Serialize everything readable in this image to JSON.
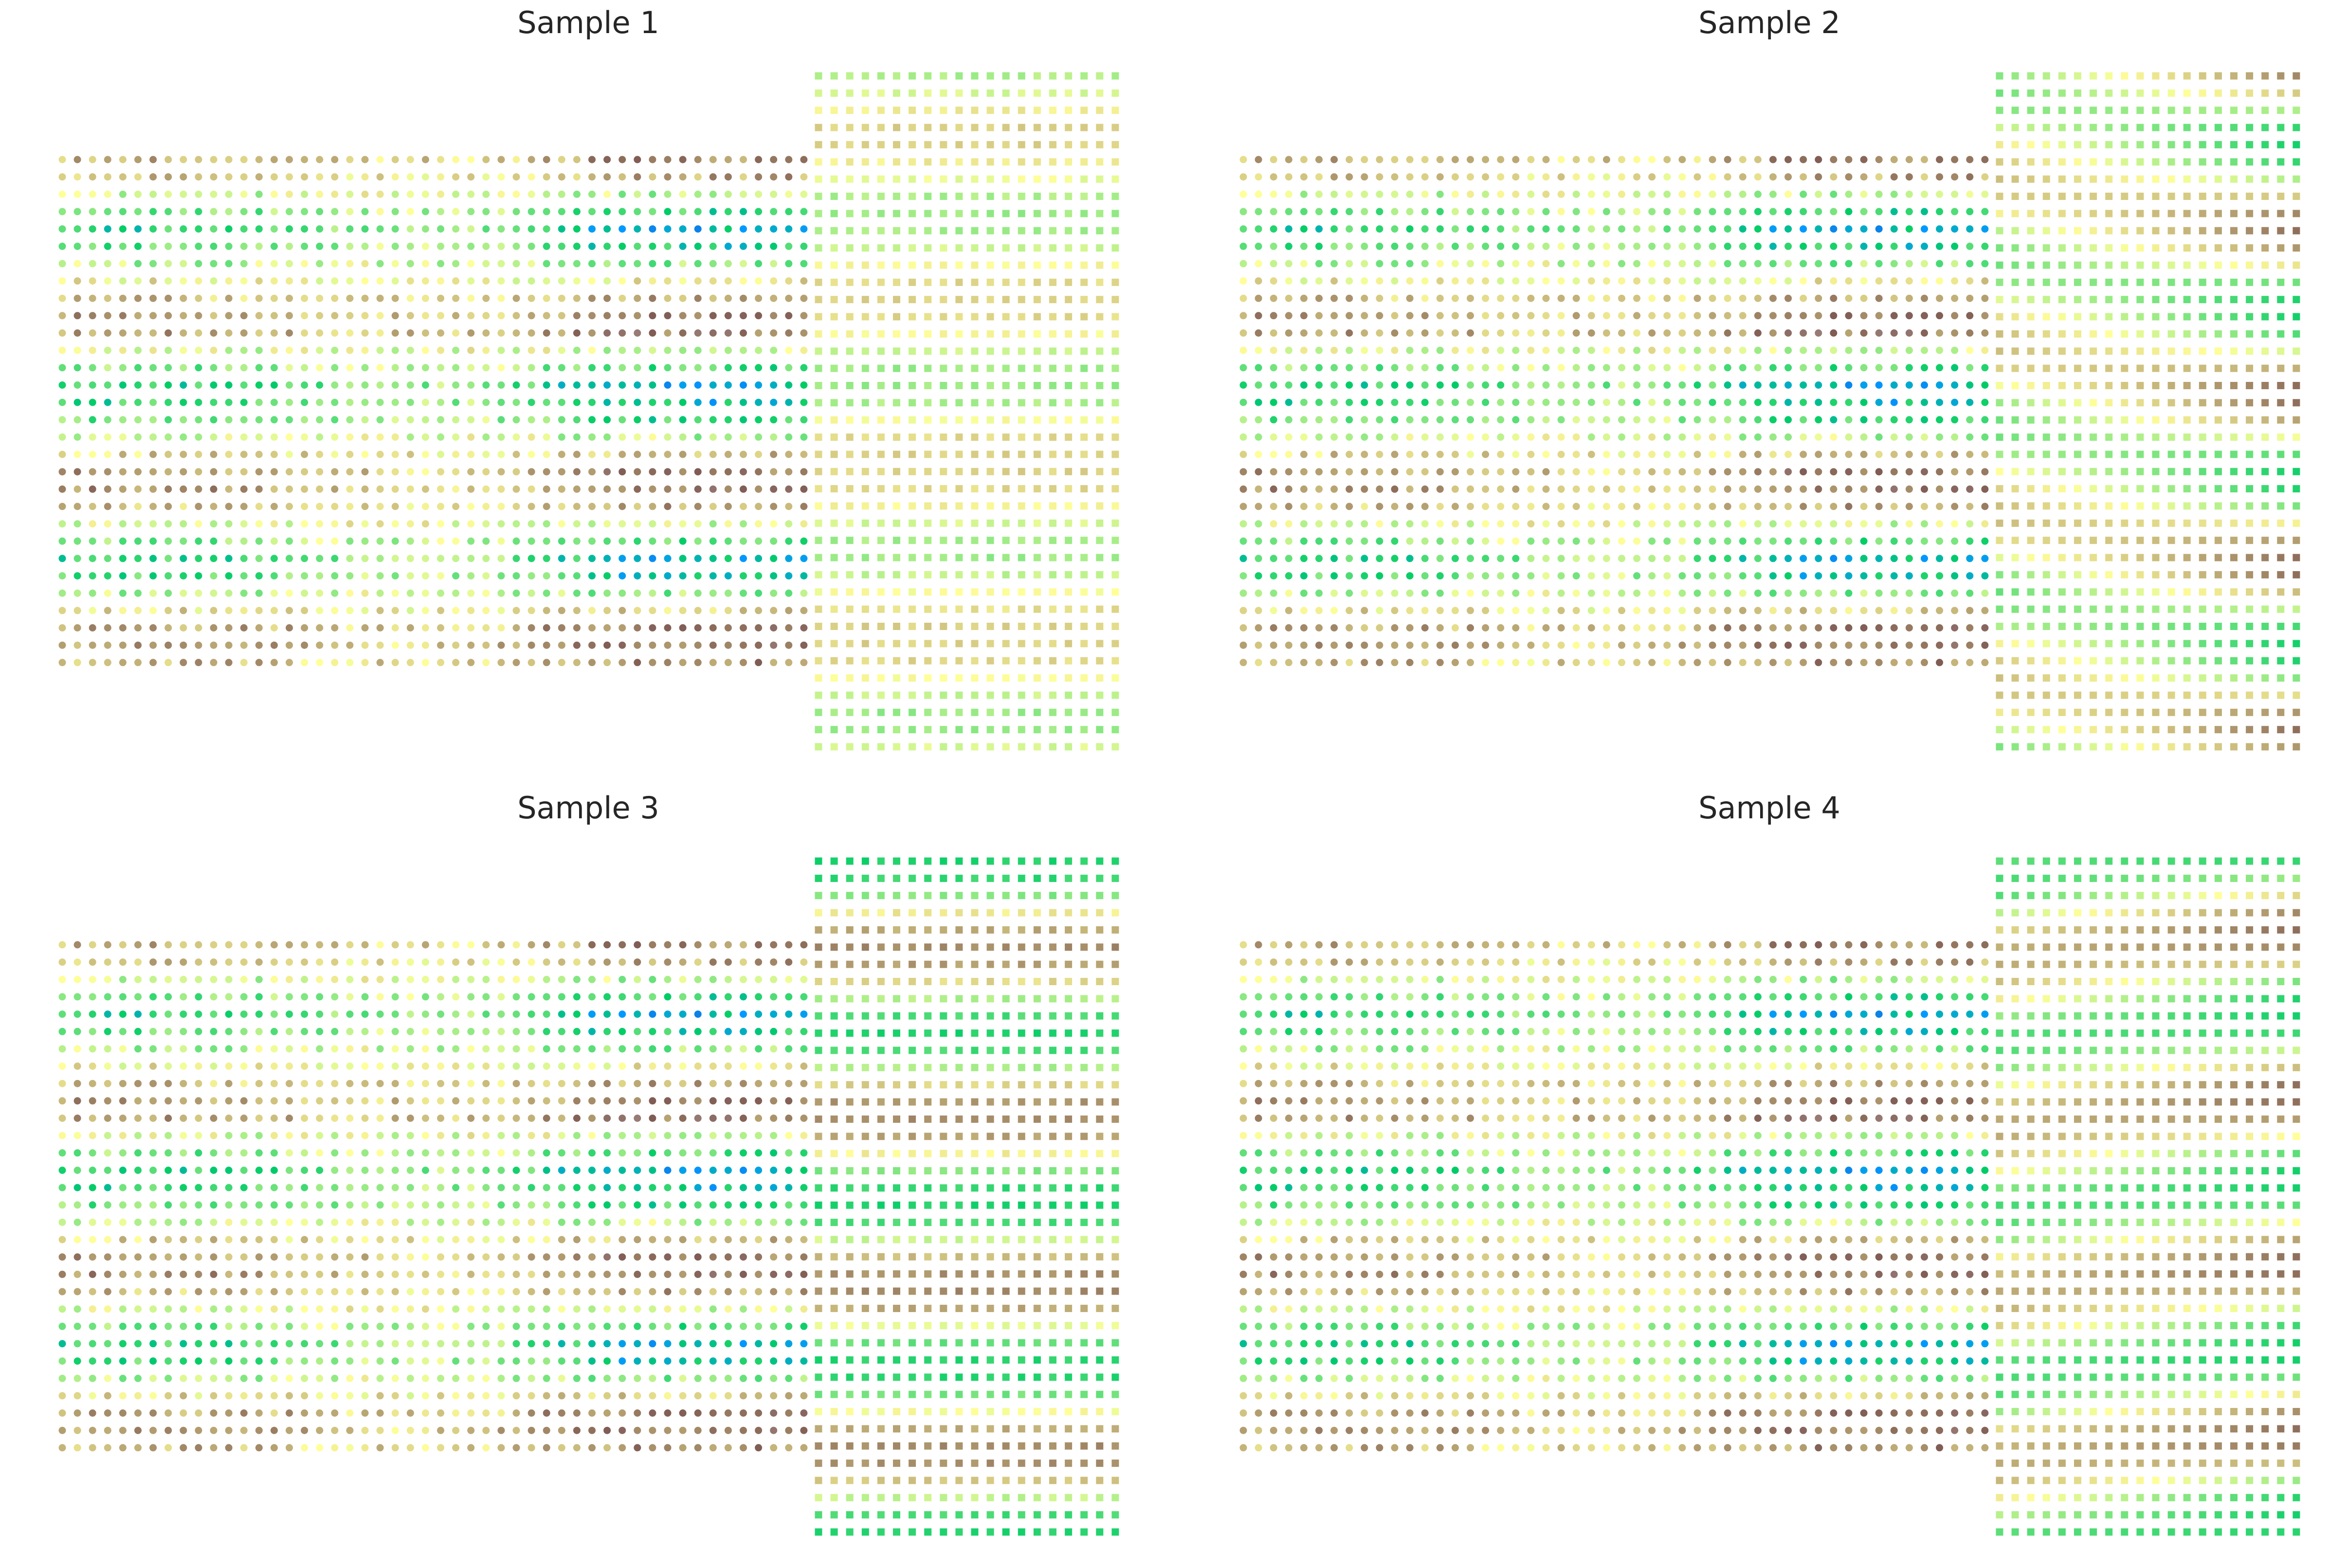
{
  "chart_data": {
    "type": "scatter",
    "colormap": "terrain",
    "value_range": [
      0,
      1
    ],
    "axes_visible": false,
    "grid": false,
    "legend": "none",
    "panels": [
      {
        "title": "Sample 1",
        "right_grid": {
          "rows": [
            0.42,
            0.46,
            0.53,
            0.57,
            0.57,
            0.53,
            0.48,
            0.42,
            0.4,
            0.41,
            0.45,
            0.51,
            0.56,
            0.57,
            0.56,
            0.51,
            0.45,
            0.4,
            0.4,
            0.42,
            0.5,
            0.56,
            0.57,
            0.57,
            0.56,
            0.52,
            0.46,
            0.41,
            0.4,
            0.44,
            0.5,
            0.55,
            0.57,
            0.57,
            0.56,
            0.5,
            0.44,
            0.4,
            0.4,
            0.46
          ]
        }
      },
      {
        "title": "Sample 2",
        "right_grid": {
          "west": [
            0.38,
            0.36,
            0.38,
            0.45,
            0.53,
            0.58,
            0.6,
            0.58,
            0.52,
            0.43,
            0.37,
            0.36,
            0.39,
            0.47,
            0.55,
            0.6,
            0.6,
            0.57,
            0.49,
            0.4,
            0.36,
            0.36,
            0.41,
            0.5,
            0.57,
            0.6,
            0.6,
            0.55,
            0.47,
            0.38,
            0.35,
            0.37,
            0.42,
            0.52,
            0.58,
            0.6,
            0.59,
            0.53,
            0.44,
            0.37
          ],
          "east": [
            0.68,
            0.58,
            0.42,
            0.3,
            0.27,
            0.3,
            0.42,
            0.58,
            0.68,
            0.72,
            0.66,
            0.54,
            0.36,
            0.28,
            0.27,
            0.33,
            0.46,
            0.62,
            0.72,
            0.72,
            0.64,
            0.49,
            0.34,
            0.27,
            0.28,
            0.37,
            0.52,
            0.65,
            0.72,
            0.72,
            0.6,
            0.44,
            0.32,
            0.27,
            0.28,
            0.38,
            0.55,
            0.66,
            0.72,
            0.66
          ]
        }
      },
      {
        "title": "Sample 3",
        "right_grid": {
          "rows": [
            0.28,
            0.3,
            0.38,
            0.53,
            0.63,
            0.68,
            0.65,
            0.56,
            0.42,
            0.32,
            0.28,
            0.32,
            0.42,
            0.57,
            0.66,
            0.68,
            0.64,
            0.52,
            0.38,
            0.3,
            0.28,
            0.32,
            0.45,
            0.6,
            0.67,
            0.68,
            0.63,
            0.48,
            0.35,
            0.29,
            0.29,
            0.36,
            0.5,
            0.63,
            0.68,
            0.67,
            0.59,
            0.44,
            0.32,
            0.28
          ]
        }
      },
      {
        "title": "Sample 4",
        "right_grid": {
          "west": [
            0.34,
            0.32,
            0.33,
            0.43,
            0.56,
            0.62,
            0.63,
            0.6,
            0.53,
            0.4,
            0.33,
            0.33,
            0.38,
            0.48,
            0.58,
            0.63,
            0.63,
            0.59,
            0.51,
            0.38,
            0.32,
            0.33,
            0.39,
            0.52,
            0.6,
            0.63,
            0.62,
            0.57,
            0.46,
            0.34,
            0.32,
            0.33,
            0.4,
            0.55,
            0.61,
            0.63,
            0.61,
            0.53,
            0.43,
            0.34
          ],
          "east": [
            0.3,
            0.4,
            0.56,
            0.68,
            0.72,
            0.68,
            0.57,
            0.37,
            0.28,
            0.27,
            0.31,
            0.45,
            0.6,
            0.72,
            0.72,
            0.65,
            0.5,
            0.34,
            0.27,
            0.27,
            0.34,
            0.5,
            0.64,
            0.72,
            0.72,
            0.62,
            0.45,
            0.31,
            0.27,
            0.27,
            0.36,
            0.53,
            0.67,
            0.72,
            0.7,
            0.6,
            0.4,
            0.29,
            0.27,
            0.29
          ]
        }
      }
    ],
    "left_grid": {
      "west": [
        0.63,
        0.6,
        0.45,
        0.35,
        0.28,
        0.33,
        0.42,
        0.52,
        0.6,
        0.65,
        0.66,
        0.47,
        0.37,
        0.28,
        0.3,
        0.36,
        0.45,
        0.57,
        0.65,
        0.66,
        0.6,
        0.47,
        0.38,
        0.29,
        0.31,
        0.42,
        0.55,
        0.65,
        0.66,
        0.62
      ],
      "center": [
        0.57,
        0.55,
        0.48,
        0.43,
        0.39,
        0.42,
        0.46,
        0.51,
        0.55,
        0.58,
        0.58,
        0.49,
        0.44,
        0.39,
        0.4,
        0.43,
        0.48,
        0.54,
        0.58,
        0.58,
        0.55,
        0.49,
        0.44,
        0.4,
        0.41,
        0.46,
        0.53,
        0.58,
        0.58,
        0.56
      ],
      "east": [
        0.68,
        0.64,
        0.43,
        0.29,
        0.19,
        0.26,
        0.39,
        0.53,
        0.64,
        0.71,
        0.72,
        0.46,
        0.32,
        0.19,
        0.22,
        0.3,
        0.43,
        0.6,
        0.71,
        0.72,
        0.64,
        0.46,
        0.33,
        0.21,
        0.23,
        0.39,
        0.57,
        0.71,
        0.72,
        0.67
      ]
    }
  }
}
